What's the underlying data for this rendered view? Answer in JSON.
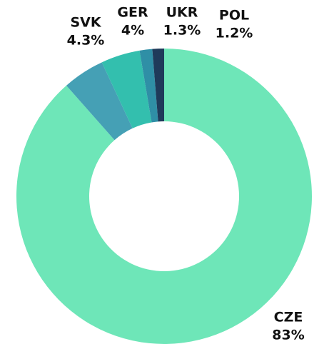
{
  "chart_data": {
    "type": "donut",
    "categories": [
      "CZE",
      "SVK",
      "GER",
      "UKR",
      "POL"
    ],
    "values": [
      83,
      4.3,
      4,
      1.3,
      1.2
    ],
    "value_labels": [
      "83%",
      "4.3%",
      "4%",
      "1.3%",
      "1.2%"
    ],
    "colors": [
      "#6ee6b8",
      "#45a0b5",
      "#33bfae",
      "#2f8fa6",
      "#1f3a5a"
    ]
  }
}
